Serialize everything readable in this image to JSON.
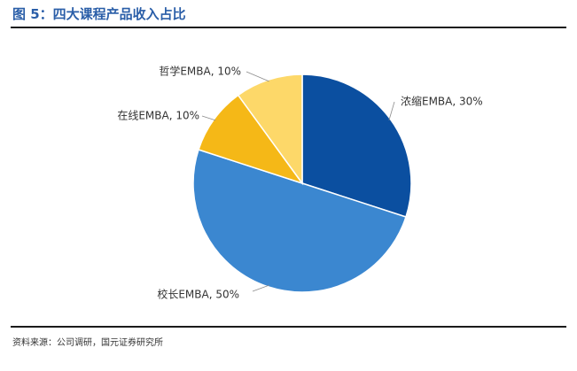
{
  "figure": {
    "title": "图 5：四大课程产品收入占比",
    "source": "资料来源：公司调研，国元证券研究所"
  },
  "chart_data": {
    "type": "pie",
    "title": "",
    "start_angle_deg": 0,
    "direction": "clockwise",
    "slices": [
      {
        "label": "浓缩EMBA, 30%",
        "name": "浓缩EMBA",
        "value": 30,
        "color": "#0b4fa0"
      },
      {
        "label": "校长EMBA, 50%",
        "name": "校长EMBA",
        "value": 50,
        "color": "#3b87d0"
      },
      {
        "label": "在线EMBA, 10%",
        "name": "在线EMBA",
        "value": 10,
        "color": "#f5b817"
      },
      {
        "label": "哲学EMBA, 10%",
        "name": "哲学EMBA",
        "value": 10,
        "color": "#fdd869"
      }
    ]
  }
}
